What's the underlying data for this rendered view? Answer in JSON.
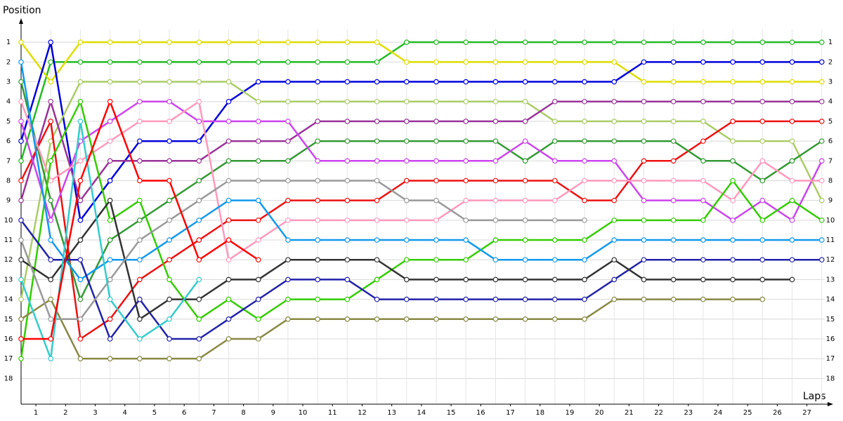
{
  "chart_data": {
    "type": "line",
    "y_label": "Position",
    "x_label": "Laps",
    "x": [
      0,
      1,
      2,
      3,
      4,
      5,
      6,
      7,
      8,
      9,
      10,
      11,
      12,
      13,
      14,
      15,
      16,
      17,
      18,
      19,
      20,
      21,
      22,
      23,
      24,
      25,
      26,
      27
    ],
    "xlim": [
      0,
      27.1
    ],
    "ylim": [
      0,
      19.3
    ],
    "y_inverted": true,
    "grid": true,
    "xticks": [
      {
        "value": 0.5,
        "label": "1"
      },
      {
        "value": 1.5,
        "label": "2"
      },
      {
        "value": 2.5,
        "label": "3"
      },
      {
        "value": 3.5,
        "label": "4"
      },
      {
        "value": 4.5,
        "label": "5"
      },
      {
        "value": 5.5,
        "label": "6"
      },
      {
        "value": 6.5,
        "label": "7"
      },
      {
        "value": 7.5,
        "label": "8"
      },
      {
        "value": 8.5,
        "label": "9"
      },
      {
        "value": 9.5,
        "label": "10"
      },
      {
        "value": 10.5,
        "label": "11"
      },
      {
        "value": 11.5,
        "label": "12"
      },
      {
        "value": 12.5,
        "label": "13"
      },
      {
        "value": 13.5,
        "label": "14"
      },
      {
        "value": 14.5,
        "label": "15"
      },
      {
        "value": 15.5,
        "label": "16"
      },
      {
        "value": 16.5,
        "label": "17"
      },
      {
        "value": 17.5,
        "label": "18"
      },
      {
        "value": 18.5,
        "label": "19"
      },
      {
        "value": 19.5,
        "label": "20"
      },
      {
        "value": 20.5,
        "label": "21"
      },
      {
        "value": 21.5,
        "label": "22"
      },
      {
        "value": 22.5,
        "label": "23"
      },
      {
        "value": 23.5,
        "label": "24"
      },
      {
        "value": 24.5,
        "label": "25"
      },
      {
        "value": 25.5,
        "label": "26"
      },
      {
        "value": 26.5,
        "label": "27"
      }
    ],
    "yticks": [
      1,
      2,
      3,
      4,
      5,
      6,
      7,
      8,
      9,
      10,
      11,
      12,
      13,
      14,
      15,
      16,
      17,
      18
    ],
    "series": [
      {
        "color": "#22bb22",
        "values": [
          7,
          2,
          2,
          2,
          2,
          2,
          2,
          2,
          2,
          2,
          2,
          2,
          2,
          1,
          1,
          1,
          1,
          1,
          1,
          1,
          1,
          1,
          1,
          1,
          1,
          1,
          1,
          1
        ]
      },
      {
        "color": "#dddd00",
        "values": [
          1,
          3,
          1,
          1,
          1,
          1,
          1,
          1,
          1,
          1,
          1,
          1,
          1,
          2,
          2,
          2,
          2,
          2,
          2,
          2,
          2,
          3,
          3,
          3,
          3,
          3,
          3,
          3
        ]
      },
      {
        "color": "#0000dd",
        "values": [
          6,
          1,
          10,
          8,
          6,
          6,
          6,
          4,
          3,
          3,
          3,
          3,
          3,
          3,
          3,
          3,
          3,
          3,
          3,
          3,
          3,
          2,
          2,
          2,
          2,
          2,
          2,
          2
        ]
      },
      {
        "color": "#aacc66",
        "values": [
          14,
          6,
          3,
          3,
          3,
          3,
          3,
          3,
          4,
          4,
          4,
          4,
          4,
          4,
          4,
          4,
          4,
          4,
          5,
          5,
          5,
          5,
          5,
          5,
          6,
          6,
          6,
          9
        ]
      },
      {
        "color": "#993399",
        "values": [
          9,
          4,
          9,
          7,
          7,
          7,
          7,
          6,
          6,
          6,
          5,
          5,
          5,
          5,
          5,
          5,
          5,
          5,
          4,
          4,
          4,
          4,
          4,
          4,
          4,
          4,
          4,
          4
        ]
      },
      {
        "color": "#ee1111",
        "values": [
          8,
          5,
          16,
          15,
          13,
          12,
          11,
          10,
          10,
          9,
          9,
          9,
          9,
          8,
          8,
          8,
          8,
          8,
          8,
          9,
          9,
          7,
          7,
          6,
          5,
          5,
          5,
          5
        ]
      },
      {
        "color": "#339933",
        "values": [
          3,
          9,
          14,
          11,
          10,
          9,
          8,
          7,
          7,
          7,
          6,
          6,
          6,
          6,
          6,
          6,
          6,
          7,
          6,
          6,
          6,
          6,
          6,
          7,
          7,
          8,
          7,
          6
        ]
      },
      {
        "color": "#cc44ee",
        "values": [
          5,
          10,
          6,
          5,
          4,
          4,
          5,
          5,
          5,
          5,
          7,
          7,
          7,
          7,
          7,
          7,
          7,
          6,
          7,
          7,
          7,
          9,
          9,
          9,
          10,
          9,
          10,
          7
        ]
      },
      {
        "color": "#ff99bb",
        "values": [
          4,
          8,
          7,
          6,
          5,
          5,
          4,
          12,
          11,
          10,
          10,
          10,
          10,
          10,
          10,
          9,
          9,
          9,
          9,
          8,
          8,
          8,
          8,
          8,
          9,
          7,
          8,
          8
        ]
      },
      {
        "color": "#33cc00",
        "values": [
          17,
          7,
          4,
          10,
          9,
          13,
          15,
          14,
          15,
          14,
          14,
          14,
          13,
          12,
          12,
          12,
          11,
          11,
          11,
          11,
          10,
          10,
          10,
          10,
          8,
          10,
          9,
          10
        ]
      },
      {
        "color": "#1199ee",
        "values": [
          2,
          11,
          13,
          12,
          12,
          11,
          10,
          9,
          9,
          11,
          11,
          11,
          11,
          11,
          11,
          11,
          12,
          12,
          12,
          12,
          11,
          11,
          11,
          11,
          11,
          11,
          11,
          11
        ]
      },
      {
        "color": "#2222aa",
        "values": [
          10,
          12,
          12,
          16,
          14,
          16,
          16,
          15,
          14,
          13,
          13,
          13,
          14,
          14,
          14,
          14,
          14,
          14,
          14,
          14,
          13,
          12,
          12,
          12,
          12,
          12,
          12,
          12
        ]
      },
      {
        "color": "#333333",
        "values": [
          12,
          13,
          11,
          9,
          15,
          14,
          14,
          13,
          13,
          12,
          12,
          12,
          12,
          13,
          13,
          13,
          13,
          13,
          13,
          13,
          12,
          13,
          13,
          13,
          13,
          13,
          13,
          null
        ]
      },
      {
        "color": "#888844",
        "values": [
          15,
          14,
          17,
          17,
          17,
          17,
          17,
          16,
          16,
          15,
          15,
          15,
          15,
          15,
          15,
          15,
          15,
          15,
          15,
          15,
          14,
          14,
          14,
          14,
          14,
          14,
          null,
          null
        ]
      },
      {
        "color": "#999999",
        "values": [
          11,
          15,
          15,
          13,
          11,
          10,
          9,
          8,
          8,
          8,
          8,
          8,
          8,
          9,
          9,
          10,
          10,
          10,
          10,
          10,
          null,
          null,
          null,
          null,
          null,
          null,
          null,
          null
        ]
      },
      {
        "color": "#33cccc",
        "values": [
          13,
          17,
          5,
          14,
          16,
          15,
          13,
          null,
          null,
          null,
          null,
          null,
          null,
          null,
          null,
          null,
          null,
          null,
          null,
          null,
          null,
          null,
          null,
          null,
          null,
          null,
          null,
          null
        ]
      },
      {
        "color": "#ff0000",
        "values": [
          16,
          16,
          8,
          4,
          8,
          8,
          12,
          11,
          12,
          null,
          null,
          null,
          null,
          null,
          null,
          null,
          null,
          null,
          null,
          null,
          null,
          null,
          null,
          null,
          null,
          null,
          null,
          null
        ]
      }
    ]
  }
}
